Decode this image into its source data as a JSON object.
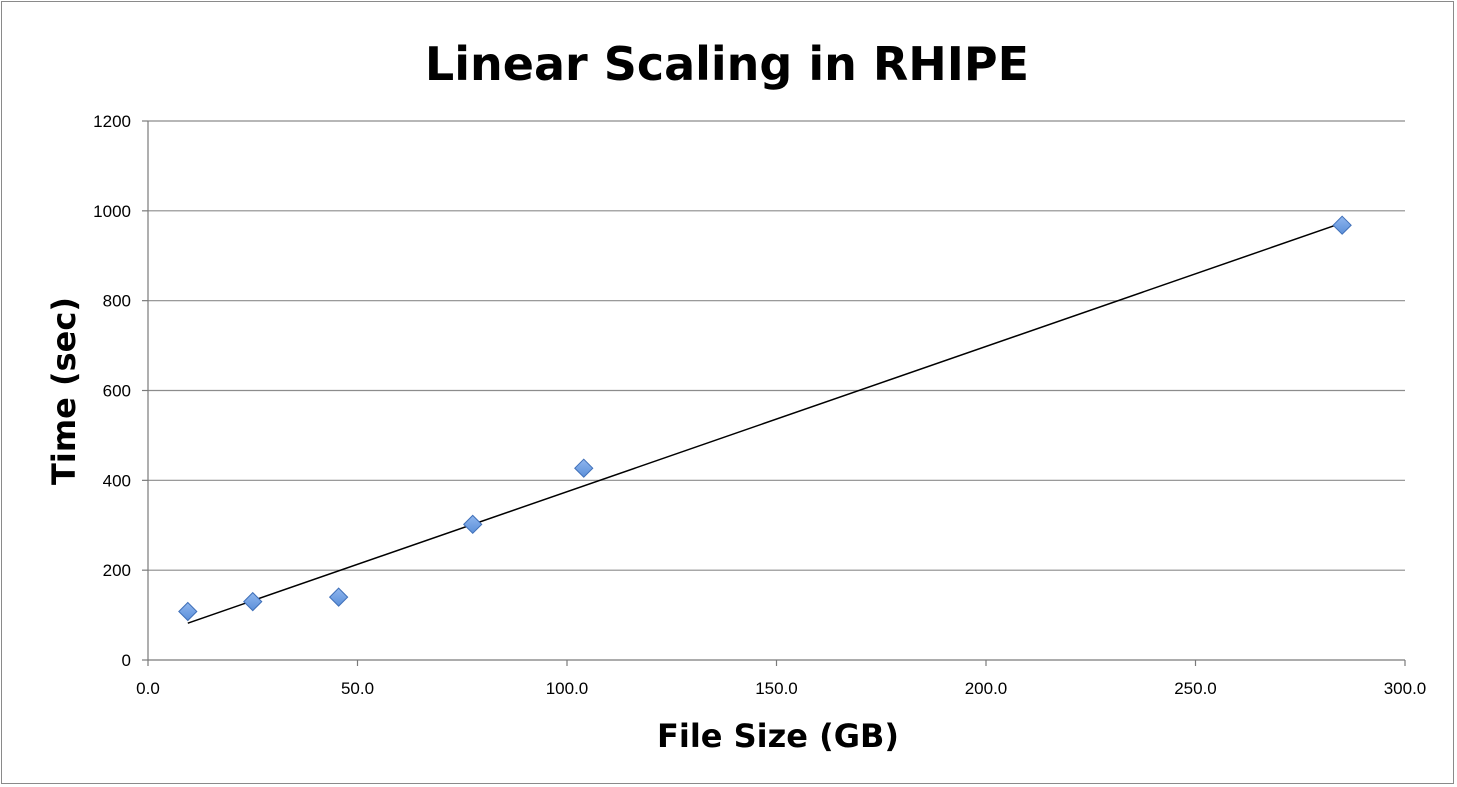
{
  "chart_data": {
    "type": "scatter",
    "title": "Linear Scaling in RHIPE",
    "xlabel": "File Size (GB)",
    "ylabel": "Time (sec)",
    "xlim": [
      0,
      300
    ],
    "ylim": [
      0,
      1200
    ],
    "x_ticks": [
      "0.0",
      "50.0",
      "100.0",
      "150.0",
      "200.0",
      "250.0",
      "300.0"
    ],
    "y_ticks": [
      "0",
      "200",
      "400",
      "600",
      "800",
      "1000",
      "1200"
    ],
    "grid": "horizontal",
    "legend": "none",
    "series": [
      {
        "marker": "diamond",
        "color": "#5b8fd9",
        "points": [
          {
            "x": 9.5,
            "y": 108
          },
          {
            "x": 25.0,
            "y": 130
          },
          {
            "x": 45.5,
            "y": 140
          },
          {
            "x": 77.5,
            "y": 302
          },
          {
            "x": 104.0,
            "y": 427
          },
          {
            "x": 285.0,
            "y": 968
          }
        ]
      }
    ],
    "trendline": {
      "type": "linear",
      "color": "#000000",
      "x": [
        9.5,
        285.0
      ],
      "y": [
        82,
        973
      ]
    }
  }
}
